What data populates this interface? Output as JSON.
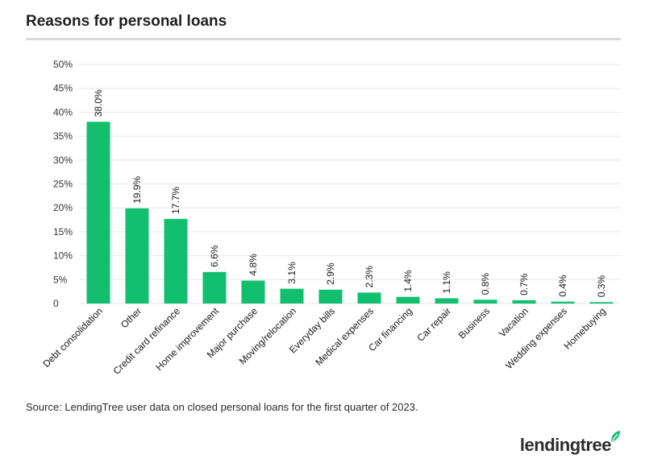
{
  "header": {
    "title": "Reasons for personal loans"
  },
  "footer": {
    "source": "Source: LendingTree user data on closed personal loans for the first quarter of 2023.",
    "logo_text": "lendingtree"
  },
  "colors": {
    "bar": "#12bf6f",
    "grid": "#e6e6e6",
    "axis_text": "#333333",
    "leaf": "#12bf6f"
  },
  "chart_data": {
    "type": "bar",
    "title": "Reasons for personal loans",
    "xlabel": "",
    "ylabel": "",
    "ylim": [
      0,
      50
    ],
    "yticks": [
      0,
      5,
      10,
      15,
      20,
      25,
      30,
      35,
      40,
      45,
      50
    ],
    "ytick_labels": [
      "0",
      "5%",
      "10%",
      "15%",
      "20%",
      "25%",
      "30%",
      "35%",
      "40%",
      "45%",
      "50%"
    ],
    "grid": true,
    "categories": [
      "Debt consolidation",
      "Other",
      "Credit card refinance",
      "Home improvement",
      "Major purchase",
      "Moving/relocation",
      "Everyday bills",
      "Medical expenses",
      "Car financing",
      "Car repair",
      "Business",
      "Vacation",
      "Wedding expenses",
      "Homebuying"
    ],
    "values": [
      38.0,
      19.9,
      17.7,
      6.6,
      4.8,
      3.1,
      2.9,
      2.3,
      1.4,
      1.1,
      0.8,
      0.7,
      0.4,
      0.3
    ],
    "data_labels": [
      "38.0%",
      "19.9%",
      "17.7%",
      "6.6%",
      "4.8%",
      "3.1%",
      "2.9%",
      "2.3%",
      "1.4%",
      "1.1%",
      "0.8%",
      "0.7%",
      "0.4%",
      "0.3%"
    ]
  }
}
